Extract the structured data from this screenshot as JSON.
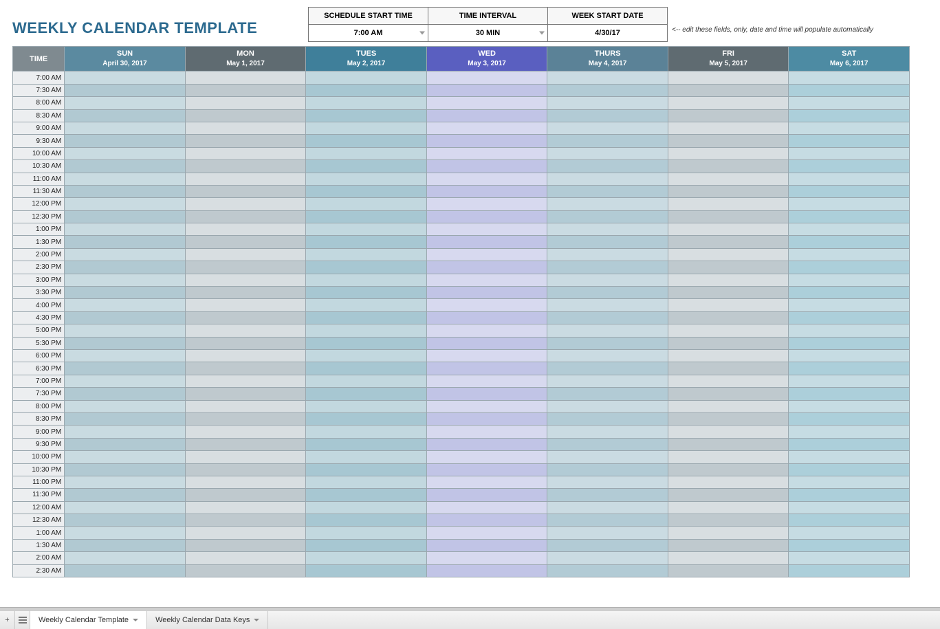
{
  "title": "WEEKLY CALENDAR TEMPLATE",
  "settings": {
    "headers": [
      "SCHEDULE START TIME",
      "TIME INTERVAL",
      "WEEK START DATE"
    ],
    "values": [
      "7:00 AM",
      "30 MIN",
      "4/30/17"
    ]
  },
  "helper_text": "<-- edit these fields, only, date and time will populate automatically",
  "time_header": "TIME",
  "days": [
    {
      "name": "SUN",
      "date": "April 30, 2017",
      "header_bg": "#5b8aa0",
      "row_colors": [
        "#c9dbe1",
        "#b1c9d2"
      ]
    },
    {
      "name": "MON",
      "date": "May 1, 2017",
      "header_bg": "#5f6b71",
      "row_colors": [
        "#d8dee1",
        "#bfc9ce"
      ]
    },
    {
      "name": "TUES",
      "date": "May 2, 2017",
      "header_bg": "#3f7f9a",
      "row_colors": [
        "#c2d8df",
        "#a7c7d2"
      ]
    },
    {
      "name": "WED",
      "date": "May 3, 2017",
      "header_bg": "#5a5fc0",
      "row_colors": [
        "#d7d9ef",
        "#c1c4e6"
      ]
    },
    {
      "name": "THURS",
      "date": "May 4, 2017",
      "header_bg": "#5b8297",
      "row_colors": [
        "#cadbe2",
        "#b2cbd5"
      ]
    },
    {
      "name": "FRI",
      "date": "May 5, 2017",
      "header_bg": "#5f6b71",
      "row_colors": [
        "#d8dee1",
        "#bfc9ce"
      ]
    },
    {
      "name": "SAT",
      "date": "May 6, 2017",
      "header_bg": "#4d8ba3",
      "row_colors": [
        "#c6dce3",
        "#accfda"
      ]
    }
  ],
  "time_slots": [
    "7:00 AM",
    "7:30 AM",
    "8:00 AM",
    "8:30 AM",
    "9:00 AM",
    "9:30 AM",
    "10:00 AM",
    "10:30 AM",
    "11:00 AM",
    "11:30 AM",
    "12:00 PM",
    "12:30 PM",
    "1:00 PM",
    "1:30 PM",
    "2:00 PM",
    "2:30 PM",
    "3:00 PM",
    "3:30 PM",
    "4:00 PM",
    "4:30 PM",
    "5:00 PM",
    "5:30 PM",
    "6:00 PM",
    "6:30 PM",
    "7:00 PM",
    "7:30 PM",
    "8:00 PM",
    "8:30 PM",
    "9:00 PM",
    "9:30 PM",
    "10:00 PM",
    "10:30 PM",
    "11:00 PM",
    "11:30 PM",
    "12:00 AM",
    "12:30 AM",
    "1:00 AM",
    "1:30 AM",
    "2:00 AM",
    "2:30 AM"
  ],
  "tabs": {
    "active": "Weekly Calendar Template",
    "inactive": "Weekly Calendar Data Keys"
  },
  "colors": {
    "title": "#2c6a8f",
    "time_header_bg": "#7f8a90",
    "time_cell_bg": "#eceef0",
    "grid_border": "#9aa7ae"
  }
}
